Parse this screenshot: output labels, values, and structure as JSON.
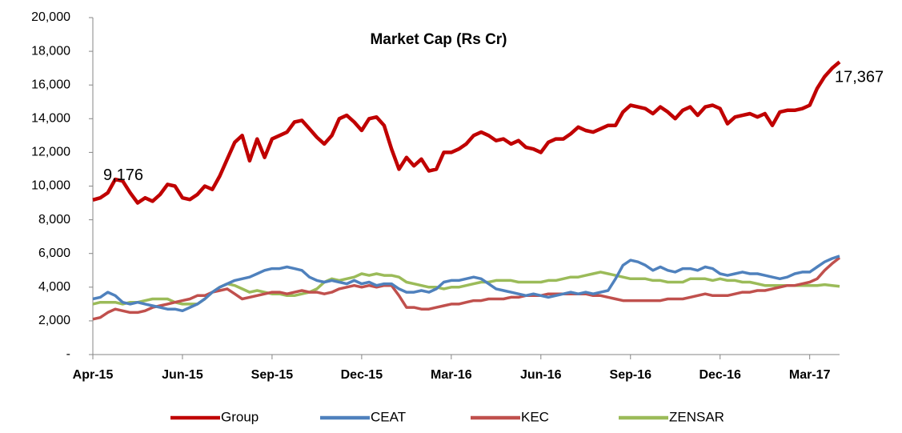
{
  "chart_data": {
    "type": "line",
    "title": "Market Cap (Rs Cr)",
    "categories": [
      "Apr-15",
      null,
      null,
      null,
      null,
      null,
      null,
      null,
      null,
      null,
      null,
      null,
      "Jun-15",
      null,
      null,
      null,
      null,
      null,
      null,
      null,
      null,
      null,
      null,
      null,
      "Sep-15",
      null,
      null,
      null,
      null,
      null,
      null,
      null,
      null,
      null,
      null,
      null,
      "Dec-15",
      null,
      null,
      null,
      null,
      null,
      null,
      null,
      null,
      null,
      null,
      null,
      "Mar-16",
      null,
      null,
      null,
      null,
      null,
      null,
      null,
      null,
      null,
      null,
      null,
      "Jun-16",
      null,
      null,
      null,
      null,
      null,
      null,
      null,
      null,
      null,
      null,
      null,
      "Sep-16",
      null,
      null,
      null,
      null,
      null,
      null,
      null,
      null,
      null,
      null,
      null,
      "Dec-16",
      null,
      null,
      null,
      null,
      null,
      null,
      null,
      null,
      null,
      null,
      null,
      "Mar-17",
      null,
      null,
      null,
      null
    ],
    "series": [
      {
        "name": "Group",
        "color": "#c00000",
        "values": [
          9176,
          9300,
          9600,
          10400,
          10300,
          9600,
          9000,
          9300,
          9100,
          9500,
          10100,
          10000,
          9300,
          9200,
          9500,
          10000,
          9800,
          10600,
          11600,
          12600,
          13000,
          11500,
          12800,
          11700,
          12800,
          13000,
          13200,
          13800,
          13900,
          13400,
          12900,
          12500,
          13000,
          14000,
          14200,
          13800,
          13300,
          14000,
          14100,
          13600,
          12200,
          11000,
          11700,
          11200,
          11600,
          10900,
          11000,
          12000,
          12000,
          12200,
          12500,
          13000,
          13200,
          13000,
          12700,
          12800,
          12500,
          12700,
          12300,
          12200,
          12000,
          12600,
          12800,
          12800,
          13100,
          13500,
          13300,
          13200,
          13400,
          13600,
          13600,
          14400,
          14800,
          14700,
          14600,
          14300,
          14700,
          14400,
          14000,
          14500,
          14700,
          14200,
          14700,
          14800,
          14600,
          13700,
          14100,
          14200,
          14300,
          14100,
          14300,
          13600,
          14400,
          14500,
          14500,
          14600,
          14800,
          15800,
          16500,
          17000,
          17367
        ],
        "value_labels": [
          "9,176",
          null,
          null,
          null,
          null,
          null,
          null,
          null,
          null,
          null,
          null,
          null,
          null,
          null,
          null,
          null,
          null,
          null,
          null,
          null,
          null,
          null,
          null,
          null,
          null,
          null,
          null,
          null,
          null,
          null,
          null,
          null,
          null,
          null,
          null,
          null,
          null,
          null,
          null,
          null,
          null,
          null,
          null,
          null,
          null,
          null,
          null,
          null,
          null,
          null,
          null,
          null,
          null,
          null,
          null,
          null,
          null,
          null,
          null,
          null,
          null,
          null,
          null,
          null,
          null,
          null,
          null,
          null,
          null,
          null,
          null,
          null,
          null,
          null,
          null,
          null,
          null,
          null,
          null,
          null,
          null,
          null,
          null,
          null,
          null,
          null,
          null,
          null,
          null,
          null,
          null,
          null,
          null,
          null,
          null,
          null,
          null,
          null,
          null,
          null,
          "17,367"
        ]
      },
      {
        "name": "CEAT",
        "color": "#4f81bd",
        "values": [
          3300,
          3400,
          3700,
          3500,
          3100,
          3000,
          3100,
          3000,
          2900,
          2800,
          2700,
          2700,
          2600,
          2800,
          3000,
          3300,
          3700,
          4000,
          4200,
          4400,
          4500,
          4600,
          4800,
          5000,
          5100,
          5100,
          5200,
          5100,
          5000,
          4600,
          4400,
          4300,
          4400,
          4300,
          4200,
          4400,
          4200,
          4300,
          4100,
          4200,
          4200,
          3900,
          3700,
          3700,
          3800,
          3700,
          3900,
          4300,
          4400,
          4400,
          4500,
          4600,
          4500,
          4200,
          3900,
          3800,
          3700,
          3600,
          3500,
          3600,
          3500,
          3400,
          3500,
          3600,
          3700,
          3600,
          3700,
          3600,
          3700,
          3800,
          4500,
          5300,
          5600,
          5500,
          5300,
          5000,
          5200,
          5000,
          4900,
          5100,
          5100,
          5000,
          5200,
          5100,
          4800,
          4700,
          4800,
          4900,
          4800,
          4800,
          4700,
          4600,
          4500,
          4600,
          4800,
          4900,
          4900,
          5200,
          5500,
          5700,
          5850
        ]
      },
      {
        "name": "KEC",
        "color": "#c0504d",
        "values": [
          2100,
          2200,
          2500,
          2700,
          2600,
          2500,
          2500,
          2600,
          2800,
          2900,
          3000,
          3100,
          3200,
          3300,
          3500,
          3500,
          3700,
          3800,
          3900,
          3600,
          3300,
          3400,
          3500,
          3600,
          3700,
          3700,
          3600,
          3700,
          3800,
          3700,
          3700,
          3600,
          3700,
          3900,
          4000,
          4100,
          4000,
          4100,
          4000,
          4100,
          4100,
          3500,
          2800,
          2800,
          2700,
          2700,
          2800,
          2900,
          3000,
          3000,
          3100,
          3200,
          3200,
          3300,
          3300,
          3300,
          3400,
          3400,
          3500,
          3500,
          3500,
          3600,
          3600,
          3600,
          3600,
          3600,
          3600,
          3500,
          3500,
          3400,
          3300,
          3200,
          3200,
          3200,
          3200,
          3200,
          3200,
          3300,
          3300,
          3300,
          3400,
          3500,
          3600,
          3500,
          3500,
          3500,
          3600,
          3700,
          3700,
          3800,
          3800,
          3900,
          4000,
          4100,
          4100,
          4200,
          4300,
          4500,
          5000,
          5400,
          5750
        ]
      },
      {
        "name": "ZENSAR",
        "color": "#9bbb59",
        "values": [
          3000,
          3100,
          3100,
          3100,
          3000,
          3100,
          3100,
          3200,
          3300,
          3300,
          3300,
          3100,
          3000,
          3000,
          3000,
          3300,
          3700,
          4000,
          4200,
          4100,
          3900,
          3700,
          3800,
          3700,
          3600,
          3600,
          3500,
          3500,
          3600,
          3700,
          3900,
          4300,
          4500,
          4400,
          4500,
          4600,
          4800,
          4700,
          4800,
          4700,
          4700,
          4600,
          4300,
          4200,
          4100,
          4000,
          4000,
          3900,
          4000,
          4000,
          4100,
          4200,
          4300,
          4300,
          4400,
          4400,
          4400,
          4300,
          4300,
          4300,
          4300,
          4400,
          4400,
          4500,
          4600,
          4600,
          4700,
          4800,
          4900,
          4800,
          4700,
          4600,
          4500,
          4500,
          4500,
          4400,
          4400,
          4300,
          4300,
          4300,
          4500,
          4500,
          4500,
          4400,
          4500,
          4400,
          4400,
          4300,
          4300,
          4200,
          4100,
          4100,
          4100,
          4100,
          4100,
          4100,
          4100,
          4100,
          4150,
          4100,
          4050
        ]
      }
    ],
    "ylim": [
      0,
      20000
    ],
    "yticks": [
      {
        "value": 0,
        "label": "-"
      },
      {
        "value": 2000,
        "label": "2,000"
      },
      {
        "value": 4000,
        "label": "4,000"
      },
      {
        "value": 6000,
        "label": "6,000"
      },
      {
        "value": 8000,
        "label": "8,000"
      },
      {
        "value": 10000,
        "label": "10,000"
      },
      {
        "value": 12000,
        "label": "12,000"
      },
      {
        "value": 14000,
        "label": "14,000"
      },
      {
        "value": 16000,
        "label": "16,000"
      },
      {
        "value": 18000,
        "label": "18,000"
      },
      {
        "value": 20000,
        "label": "20,000"
      }
    ],
    "grid": false,
    "legend": "bottom"
  }
}
